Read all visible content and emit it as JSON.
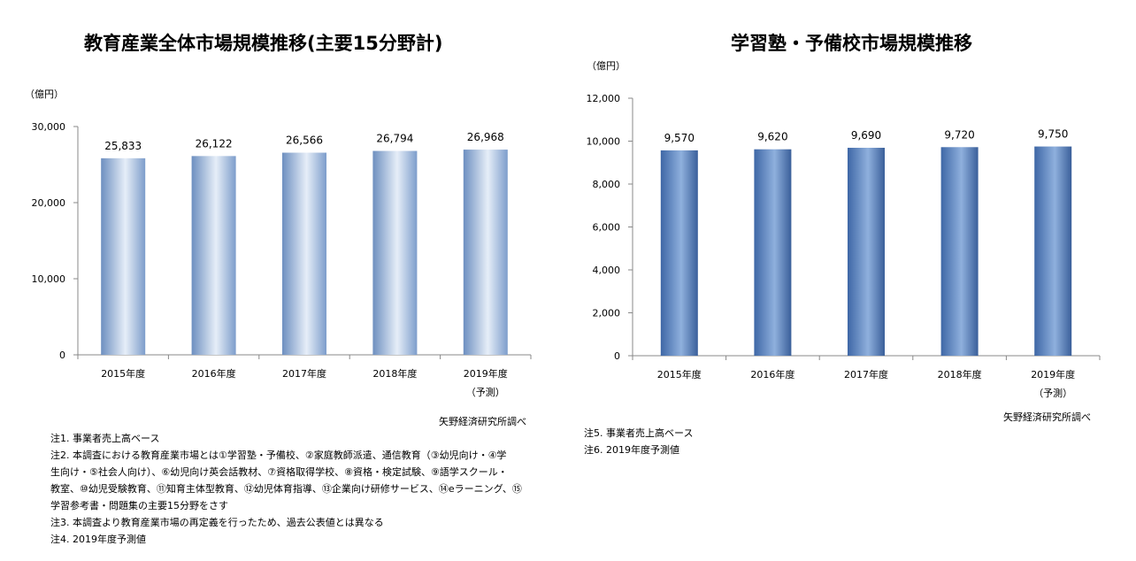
{
  "charts": [
    {
      "title": "教育産業全体市場規模推移(主要15分野計)",
      "unit": "（億円）",
      "source": "矢野経済研究所調べ",
      "notes": [
        "注1. 事業者売上高ベース",
        "注2. 本調査における教育産業市場とは①学習塾・予備校、②家庭教師派遣、通信教育（③幼児向け・④学",
        "生向け・⑤社会人向け）、⑥幼児向け英会話教材、⑦資格取得学校、⑧資格・検定試験、⑨語学スクール・",
        "教室、⑩幼児受験教育、⑪知育主体型教育、⑫幼児体育指導、⑬企業向け研修サービス、⑭eラーニング、⑮",
        "学習参考書・問題集の主要15分野をさす",
        "注3. 本調査より教育産業市場の再定義を行ったため、過去公表値とは異なる",
        "注4. 2019年度予測値"
      ]
    },
    {
      "title": "学習塾・予備校市場規模推移",
      "unit": "（億円）",
      "source": "矢野経済研究所調べ",
      "notes": [
        "注5. 事業者売上高ベース",
        "注6. 2019年度予測値"
      ]
    }
  ],
  "chart_data": [
    {
      "type": "bar",
      "title": "教育産業全体市場規模推移(主要15分野計)",
      "ylabel": "（億円）",
      "categories": [
        "2015年度",
        "2016年度",
        "2017年度",
        "2018年度",
        "2019年度"
      ],
      "category_sublabels": [
        "",
        "",
        "",
        "",
        "（予測）"
      ],
      "values": [
        25833,
        26122,
        26566,
        26794,
        26968
      ],
      "value_labels": [
        "25,833",
        "26,122",
        "26,566",
        "26,794",
        "26,968"
      ],
      "ylim": [
        0,
        30000
      ],
      "yticks": [
        0,
        10000,
        20000,
        30000
      ],
      "ytick_labels": [
        "0",
        "10,000",
        "20,000",
        "30,000"
      ],
      "grid": false,
      "bar_color": "#9cb6d8"
    },
    {
      "type": "bar",
      "title": "学習塾・予備校市場規模推移",
      "ylabel": "（億円）",
      "categories": [
        "2015年度",
        "2016年度",
        "2017年度",
        "2018年度",
        "2019年度"
      ],
      "category_sublabels": [
        "",
        "",
        "",
        "",
        "（予測）"
      ],
      "values": [
        9570,
        9620,
        9690,
        9720,
        9750
      ],
      "value_labels": [
        "9,570",
        "9,620",
        "9,690",
        "9,720",
        "9,750"
      ],
      "ylim": [
        0,
        12000
      ],
      "yticks": [
        0,
        2000,
        4000,
        6000,
        8000,
        10000,
        12000
      ],
      "ytick_labels": [
        "0",
        "2,000",
        "4,000",
        "6,000",
        "8,000",
        "10,000",
        "12,000"
      ],
      "grid": false,
      "bar_color": "#6f95c8"
    }
  ]
}
